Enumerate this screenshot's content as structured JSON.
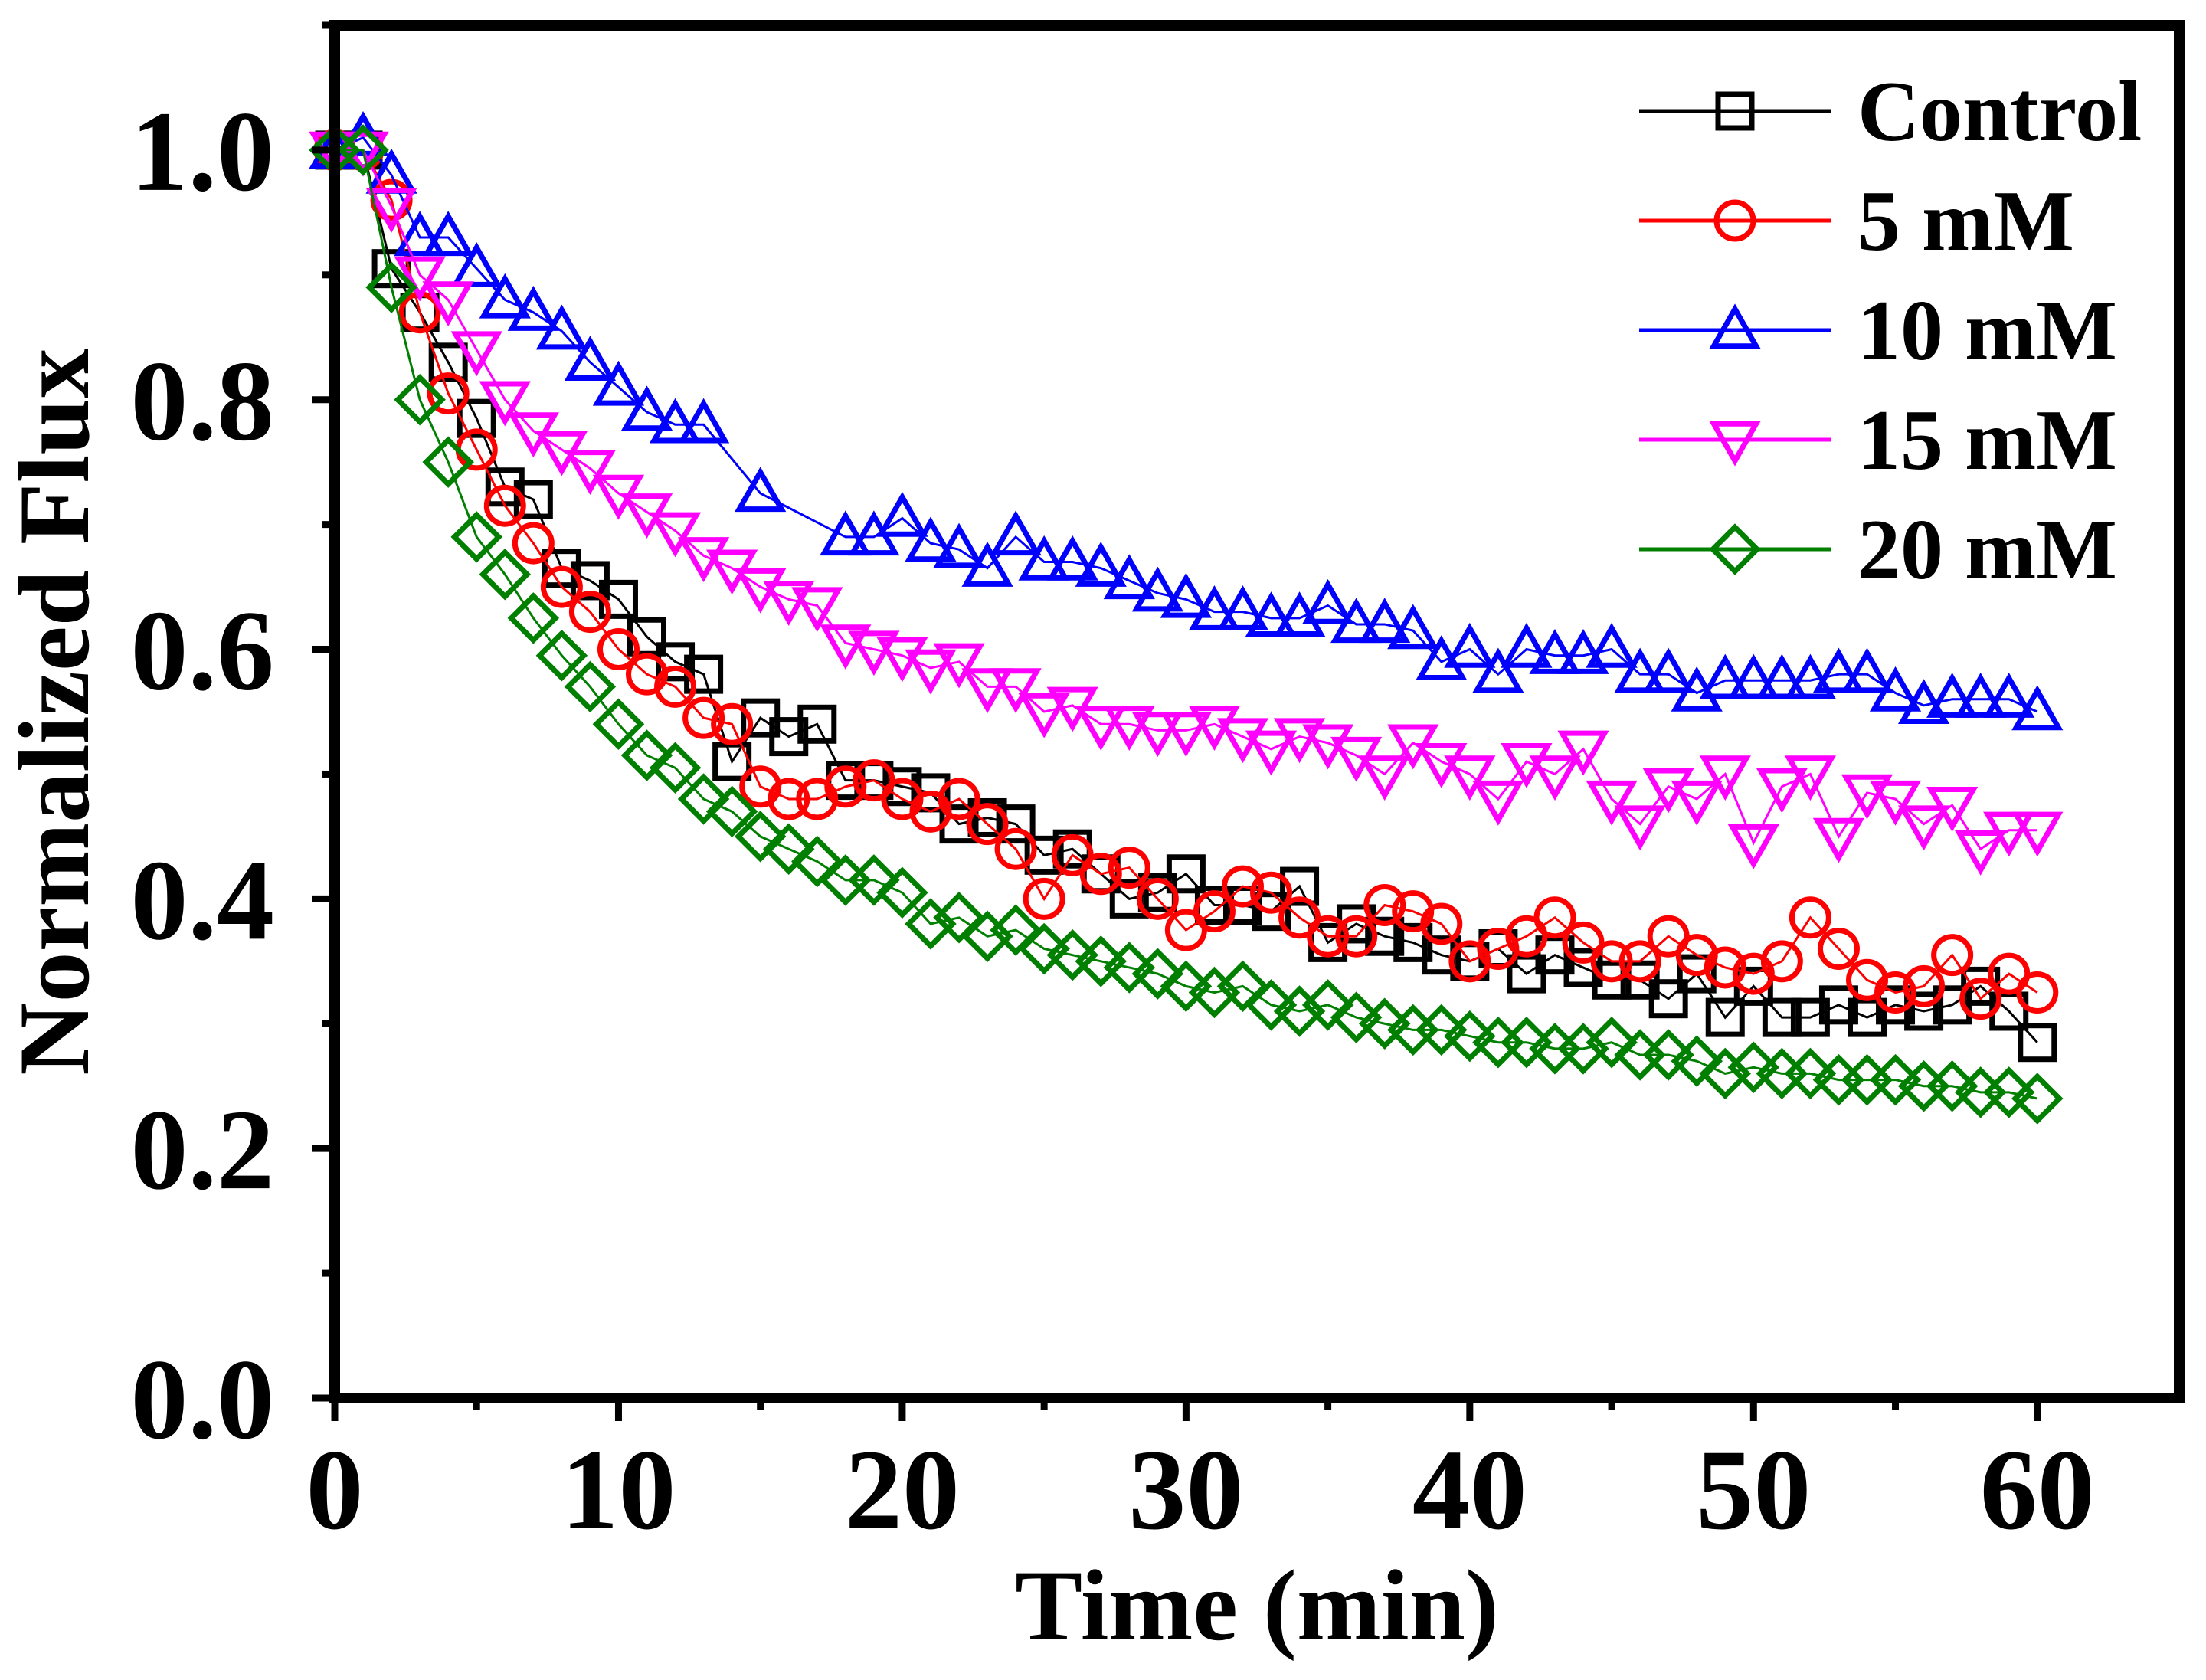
{
  "chart_data": {
    "type": "scatter",
    "title": "",
    "xlabel": "Time (min)",
    "ylabel": "Normalized Flux",
    "xlim": [
      0,
      65
    ],
    "ylim": [
      0,
      1.1
    ],
    "xticks": [
      0,
      10,
      20,
      30,
      40,
      50,
      60
    ],
    "yticks": [
      0.0,
      0.2,
      0.4,
      0.6,
      0.8,
      1.0
    ],
    "xtick_labels": [
      "0",
      "10",
      "20",
      "30",
      "40",
      "50",
      "60"
    ],
    "ytick_labels": [
      "0.0",
      "0.2",
      "0.4",
      "0.6",
      "0.8",
      "1.0"
    ],
    "grid": false,
    "legend_position": "top-right",
    "x": [
      0,
      1,
      2,
      3,
      4,
      5,
      6,
      7,
      8,
      9,
      10,
      11,
      12,
      13,
      14,
      15,
      16,
      17,
      18,
      19,
      20,
      21,
      22,
      23,
      24,
      25,
      26,
      27,
      28,
      29,
      30,
      31,
      32,
      33,
      34,
      35,
      36,
      37,
      38,
      39,
      40,
      41,
      42,
      43,
      44,
      45,
      46,
      47,
      48,
      49,
      50,
      51,
      52,
      53,
      54,
      55,
      56,
      57,
      58,
      59,
      60
    ],
    "series": [
      {
        "name": "Control",
        "label": "Control",
        "color": "#000000",
        "marker": "square",
        "values": [
          1.0,
          1.0,
          0.905,
          0.87,
          0.83,
          0.785,
          0.73,
          0.72,
          0.665,
          0.655,
          0.64,
          0.61,
          0.59,
          0.58,
          0.51,
          0.545,
          0.53,
          0.54,
          0.495,
          0.495,
          0.49,
          0.485,
          0.46,
          0.465,
          0.46,
          0.435,
          0.44,
          0.42,
          0.4,
          0.405,
          0.42,
          0.395,
          0.395,
          0.39,
          0.41,
          0.365,
          0.38,
          0.37,
          0.365,
          0.355,
          0.35,
          0.36,
          0.34,
          0.355,
          0.345,
          0.335,
          0.335,
          0.32,
          0.34,
          0.305,
          0.33,
          0.305,
          0.305,
          0.315,
          0.305,
          0.315,
          0.31,
          0.315,
          0.33,
          0.31,
          0.285
        ]
      },
      {
        "name": "5 mM",
        "label": " 5 mM",
        "color": "#ff0000",
        "marker": "circle",
        "values": [
          1.0,
          1.0,
          0.96,
          0.87,
          0.805,
          0.76,
          0.715,
          0.685,
          0.65,
          0.63,
          0.6,
          0.58,
          0.57,
          0.545,
          0.54,
          0.49,
          0.48,
          0.48,
          0.49,
          0.495,
          0.48,
          0.47,
          0.48,
          0.46,
          0.44,
          0.4,
          0.435,
          0.42,
          0.425,
          0.4,
          0.375,
          0.39,
          0.41,
          0.405,
          0.385,
          0.37,
          0.37,
          0.395,
          0.39,
          0.38,
          0.35,
          0.36,
          0.37,
          0.385,
          0.365,
          0.35,
          0.35,
          0.37,
          0.355,
          0.345,
          0.34,
          0.35,
          0.385,
          0.36,
          0.335,
          0.325,
          0.33,
          0.355,
          0.32,
          0.34,
          0.325
        ]
      },
      {
        "name": "10 mM",
        "label": "10 mM",
        "color": "#0000ff",
        "marker": "triangle-up",
        "values": [
          1.0,
          1.01,
          0.98,
          0.93,
          0.93,
          0.905,
          0.88,
          0.87,
          0.855,
          0.83,
          0.81,
          0.79,
          0.78,
          0.78,
          null,
          0.725,
          null,
          null,
          0.69,
          0.69,
          0.705,
          0.685,
          0.68,
          0.665,
          0.69,
          0.67,
          0.67,
          0.665,
          0.655,
          0.645,
          0.64,
          0.63,
          0.63,
          0.625,
          0.625,
          0.635,
          0.62,
          0.62,
          0.615,
          0.59,
          0.6,
          0.58,
          0.6,
          0.595,
          0.595,
          0.6,
          0.58,
          0.58,
          0.565,
          0.575,
          0.575,
          0.575,
          0.575,
          0.58,
          0.58,
          0.565,
          0.555,
          0.56,
          0.56,
          0.56,
          0.55
        ]
      },
      {
        "name": "15 mM",
        "label": "15 mM",
        "color": "#ff00ff",
        "marker": "triangle-down",
        "values": [
          1.0,
          1.0,
          0.955,
          0.9,
          0.88,
          0.84,
          0.8,
          0.775,
          0.76,
          0.745,
          0.725,
          0.71,
          0.695,
          0.675,
          0.665,
          0.65,
          0.64,
          0.635,
          0.605,
          0.6,
          0.595,
          0.585,
          0.59,
          0.57,
          0.57,
          0.55,
          0.555,
          0.54,
          0.54,
          0.535,
          0.535,
          0.54,
          0.53,
          0.52,
          0.53,
          0.525,
          0.515,
          0.5,
          0.525,
          0.51,
          0.5,
          0.48,
          0.51,
          0.5,
          0.52,
          0.48,
          0.46,
          0.49,
          0.48,
          0.5,
          0.445,
          0.49,
          0.5,
          0.45,
          0.485,
          0.48,
          0.46,
          0.475,
          0.44,
          0.455,
          0.455
        ]
      },
      {
        "name": "20 mM",
        "label": "20 mM",
        "color": "#007f00",
        "marker": "diamond",
        "values": [
          1.0,
          1.0,
          0.89,
          0.8,
          0.75,
          0.69,
          0.66,
          0.625,
          0.595,
          0.57,
          0.54,
          0.515,
          0.505,
          0.48,
          0.47,
          0.45,
          0.44,
          0.43,
          0.415,
          0.415,
          0.405,
          0.38,
          0.385,
          0.37,
          0.375,
          0.36,
          0.355,
          0.35,
          0.345,
          0.34,
          0.33,
          0.325,
          0.33,
          0.315,
          0.31,
          0.315,
          0.305,
          0.3,
          0.295,
          0.295,
          0.29,
          0.285,
          0.285,
          0.28,
          0.28,
          0.285,
          0.275,
          0.275,
          0.27,
          0.26,
          0.265,
          0.26,
          0.26,
          0.255,
          0.255,
          0.255,
          0.25,
          0.25,
          0.245,
          0.245,
          0.24
        ]
      }
    ]
  }
}
